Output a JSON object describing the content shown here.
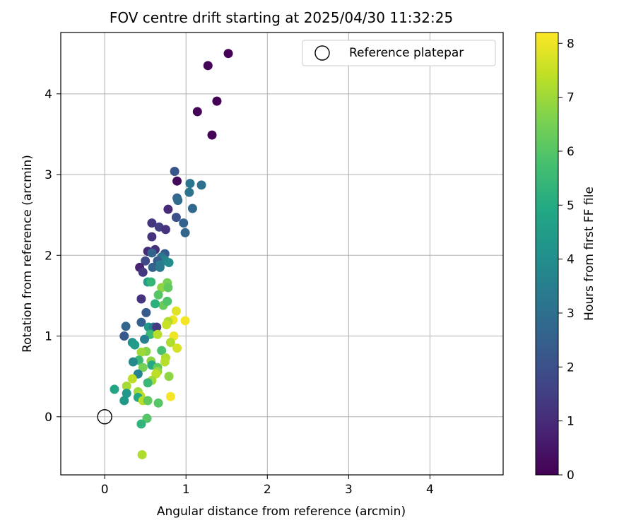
{
  "chart_data": {
    "type": "scatter",
    "title": "FOV centre drift starting at 2025/04/30 11:32:25",
    "xlabel": "Angular distance from reference (arcmin)",
    "ylabel": "Rotation from reference (arcmin)",
    "xlim": [
      -0.54,
      4.9
    ],
    "ylim": [
      -0.72,
      4.76
    ],
    "xticks": [
      0,
      1,
      2,
      3,
      4
    ],
    "yticks": [
      0,
      1,
      2,
      3,
      4
    ],
    "grid": true,
    "legend": {
      "placement": "top-right",
      "entries": [
        "Reference platepar"
      ]
    },
    "reference_point": {
      "x": 0,
      "y": 0,
      "label": "Reference platepar"
    },
    "colorbar": {
      "label": "Hours from first FF file",
      "min": 0,
      "max": 8.2,
      "ticks": [
        0,
        1,
        2,
        3,
        4,
        5,
        6,
        7,
        8
      ],
      "colormap": "viridis"
    },
    "points": [
      {
        "x": 1.52,
        "y": 4.5,
        "c": 0.05
      },
      {
        "x": 1.27,
        "y": 4.35,
        "c": 0.1
      },
      {
        "x": 1.38,
        "y": 3.91,
        "c": 0.05
      },
      {
        "x": 1.14,
        "y": 3.78,
        "c": 0.1
      },
      {
        "x": 1.32,
        "y": 3.49,
        "c": 0.05
      },
      {
        "x": 0.89,
        "y": 2.92,
        "c": 0.2
      },
      {
        "x": 0.86,
        "y": 3.04,
        "c": 2.2
      },
      {
        "x": 1.05,
        "y": 2.89,
        "c": 3.2
      },
      {
        "x": 1.19,
        "y": 2.87,
        "c": 3.0
      },
      {
        "x": 1.04,
        "y": 2.78,
        "c": 3.1
      },
      {
        "x": 0.89,
        "y": 2.71,
        "c": 2.7
      },
      {
        "x": 0.9,
        "y": 2.68,
        "c": 2.9
      },
      {
        "x": 0.78,
        "y": 2.57,
        "c": 1.0
      },
      {
        "x": 1.08,
        "y": 2.58,
        "c": 2.8
      },
      {
        "x": 0.88,
        "y": 2.47,
        "c": 2.0
      },
      {
        "x": 0.58,
        "y": 2.4,
        "c": 1.3
      },
      {
        "x": 0.97,
        "y": 2.4,
        "c": 2.6
      },
      {
        "x": 0.67,
        "y": 2.35,
        "c": 1.5
      },
      {
        "x": 0.75,
        "y": 2.32,
        "c": 1.2
      },
      {
        "x": 0.99,
        "y": 2.28,
        "c": 2.7
      },
      {
        "x": 0.58,
        "y": 2.23,
        "c": 1.2
      },
      {
        "x": 0.53,
        "y": 2.05,
        "c": 1.0
      },
      {
        "x": 0.62,
        "y": 2.07,
        "c": 1.1
      },
      {
        "x": 0.58,
        "y": 2.03,
        "c": 2.6
      },
      {
        "x": 0.74,
        "y": 2.02,
        "c": 2.3
      },
      {
        "x": 0.7,
        "y": 1.98,
        "c": 3.2
      },
      {
        "x": 0.74,
        "y": 1.94,
        "c": 3.6
      },
      {
        "x": 0.65,
        "y": 1.93,
        "c": 2.4
      },
      {
        "x": 0.79,
        "y": 1.91,
        "c": 3.9
      },
      {
        "x": 0.68,
        "y": 1.88,
        "c": 3.5
      },
      {
        "x": 0.5,
        "y": 1.93,
        "c": 1.8
      },
      {
        "x": 0.43,
        "y": 1.85,
        "c": 0.8
      },
      {
        "x": 0.59,
        "y": 1.85,
        "c": 2.6
      },
      {
        "x": 0.68,
        "y": 1.85,
        "c": 3.3
      },
      {
        "x": 0.47,
        "y": 1.79,
        "c": 1.3
      },
      {
        "x": 0.53,
        "y": 1.67,
        "c": 4.5
      },
      {
        "x": 0.57,
        "y": 1.67,
        "c": 5.4
      },
      {
        "x": 0.77,
        "y": 1.66,
        "c": 6.5
      },
      {
        "x": 0.7,
        "y": 1.6,
        "c": 6.8
      },
      {
        "x": 0.78,
        "y": 1.6,
        "c": 6.2
      },
      {
        "x": 0.66,
        "y": 1.51,
        "c": 6.0
      },
      {
        "x": 0.45,
        "y": 1.46,
        "c": 1.2
      },
      {
        "x": 0.72,
        "y": 1.38,
        "c": 6.3
      },
      {
        "x": 0.77,
        "y": 1.43,
        "c": 5.9
      },
      {
        "x": 0.62,
        "y": 1.4,
        "c": 5.2
      },
      {
        "x": 0.51,
        "y": 1.29,
        "c": 2.3
      },
      {
        "x": 0.88,
        "y": 1.31,
        "c": 7.8
      },
      {
        "x": 0.84,
        "y": 1.2,
        "c": 8.0
      },
      {
        "x": 0.78,
        "y": 1.18,
        "c": 7.2
      },
      {
        "x": 0.76,
        "y": 1.14,
        "c": 7.5
      },
      {
        "x": 0.99,
        "y": 1.19,
        "c": 8.1
      },
      {
        "x": 0.45,
        "y": 1.17,
        "c": 2.5
      },
      {
        "x": 0.26,
        "y": 1.12,
        "c": 2.7
      },
      {
        "x": 0.54,
        "y": 1.11,
        "c": 4.4
      },
      {
        "x": 0.6,
        "y": 1.11,
        "c": 3.4
      },
      {
        "x": 0.64,
        "y": 1.11,
        "c": 1.4
      },
      {
        "x": 0.56,
        "y": 1.02,
        "c": 5.5
      },
      {
        "x": 0.65,
        "y": 1.02,
        "c": 7.3
      },
      {
        "x": 0.24,
        "y": 1.0,
        "c": 2.3
      },
      {
        "x": 0.85,
        "y": 1.0,
        "c": 8.0
      },
      {
        "x": 0.49,
        "y": 0.96,
        "c": 3.5
      },
      {
        "x": 0.34,
        "y": 0.92,
        "c": 4.2
      },
      {
        "x": 0.81,
        "y": 0.92,
        "c": 7.2
      },
      {
        "x": 0.37,
        "y": 0.89,
        "c": 4.5
      },
      {
        "x": 0.89,
        "y": 0.85,
        "c": 7.7
      },
      {
        "x": 0.7,
        "y": 0.82,
        "c": 5.8
      },
      {
        "x": 0.51,
        "y": 0.81,
        "c": 6.7
      },
      {
        "x": 0.45,
        "y": 0.8,
        "c": 7.0
      },
      {
        "x": 0.57,
        "y": 0.69,
        "c": 6.8
      },
      {
        "x": 0.42,
        "y": 0.7,
        "c": 5.5
      },
      {
        "x": 0.35,
        "y": 0.68,
        "c": 3.8
      },
      {
        "x": 0.75,
        "y": 0.73,
        "c": 7.2
      },
      {
        "x": 0.74,
        "y": 0.68,
        "c": 7.3
      },
      {
        "x": 0.58,
        "y": 0.64,
        "c": 5.0
      },
      {
        "x": 0.47,
        "y": 0.61,
        "c": 6.5
      },
      {
        "x": 0.65,
        "y": 0.61,
        "c": 6.2
      },
      {
        "x": 0.65,
        "y": 0.56,
        "c": 6.9
      },
      {
        "x": 0.41,
        "y": 0.53,
        "c": 3.6
      },
      {
        "x": 0.63,
        "y": 0.53,
        "c": 7.4
      },
      {
        "x": 0.79,
        "y": 0.5,
        "c": 6.8
      },
      {
        "x": 0.34,
        "y": 0.47,
        "c": 7.4
      },
      {
        "x": 0.58,
        "y": 0.45,
        "c": 7.0
      },
      {
        "x": 0.53,
        "y": 0.42,
        "c": 5.5
      },
      {
        "x": 0.27,
        "y": 0.38,
        "c": 7.1
      },
      {
        "x": 0.12,
        "y": 0.34,
        "c": 4.8
      },
      {
        "x": 0.41,
        "y": 0.31,
        "c": 7.0
      },
      {
        "x": 0.27,
        "y": 0.29,
        "c": 4.3
      },
      {
        "x": 0.44,
        "y": 0.26,
        "c": 7.4
      },
      {
        "x": 0.41,
        "y": 0.24,
        "c": 4.9
      },
      {
        "x": 0.81,
        "y": 0.25,
        "c": 8.1
      },
      {
        "x": 0.47,
        "y": 0.2,
        "c": 7.3
      },
      {
        "x": 0.53,
        "y": 0.2,
        "c": 6.2
      },
      {
        "x": 0.24,
        "y": 0.2,
        "c": 4.4
      },
      {
        "x": 0.66,
        "y": 0.17,
        "c": 6.0
      },
      {
        "x": 0.52,
        "y": -0.02,
        "c": 6.0
      },
      {
        "x": 0.45,
        "y": -0.09,
        "c": 5.3
      },
      {
        "x": 0.46,
        "y": -0.47,
        "c": 7.2
      }
    ]
  }
}
